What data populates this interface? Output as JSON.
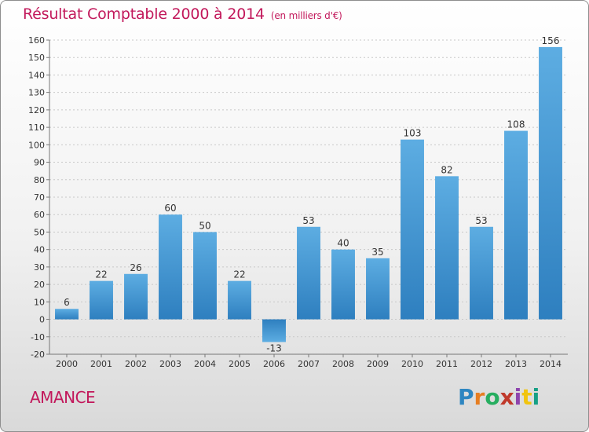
{
  "header": {
    "title": "Résultat Comptable 2000 à 2014",
    "subtitle": "(en milliers d'€)"
  },
  "footer": {
    "commune": "AMANCE",
    "logo": "Proxiti"
  },
  "colors": {
    "title": "#c2185b",
    "bar_light": "#5dade2",
    "bar_dark": "#2e86c1",
    "grid": "#c8c8c8"
  },
  "chart_data": {
    "type": "bar",
    "title": "Résultat Comptable 2000 à 2014",
    "subtitle": "(en milliers d'€)",
    "xlabel": "",
    "ylabel": "",
    "categories": [
      "2000",
      "2001",
      "2002",
      "2003",
      "2004",
      "2005",
      "2006",
      "2007",
      "2008",
      "2009",
      "2010",
      "2011",
      "2012",
      "2013",
      "2014"
    ],
    "values": [
      6,
      22,
      26,
      60,
      50,
      22,
      -13,
      53,
      40,
      35,
      103,
      82,
      53,
      108,
      156
    ],
    "data_labels": [
      "6",
      "22",
      "26",
      "60",
      "50",
      "22",
      "-13",
      "53",
      "40",
      "35",
      "103",
      "82",
      "53",
      "108",
      "156"
    ],
    "ylim": [
      -20,
      160
    ],
    "yticks": [
      -20,
      -10,
      0,
      10,
      20,
      30,
      40,
      50,
      60,
      70,
      80,
      90,
      100,
      110,
      120,
      130,
      140,
      150,
      160
    ],
    "ytick_labels": [
      "-20",
      "-10",
      "0",
      "10",
      "20",
      "30",
      "40",
      "50",
      "60",
      "70",
      "80",
      "90",
      "100",
      "110",
      "120",
      "130",
      "140",
      "150",
      "160"
    ],
    "grid": true,
    "legend": "none"
  }
}
